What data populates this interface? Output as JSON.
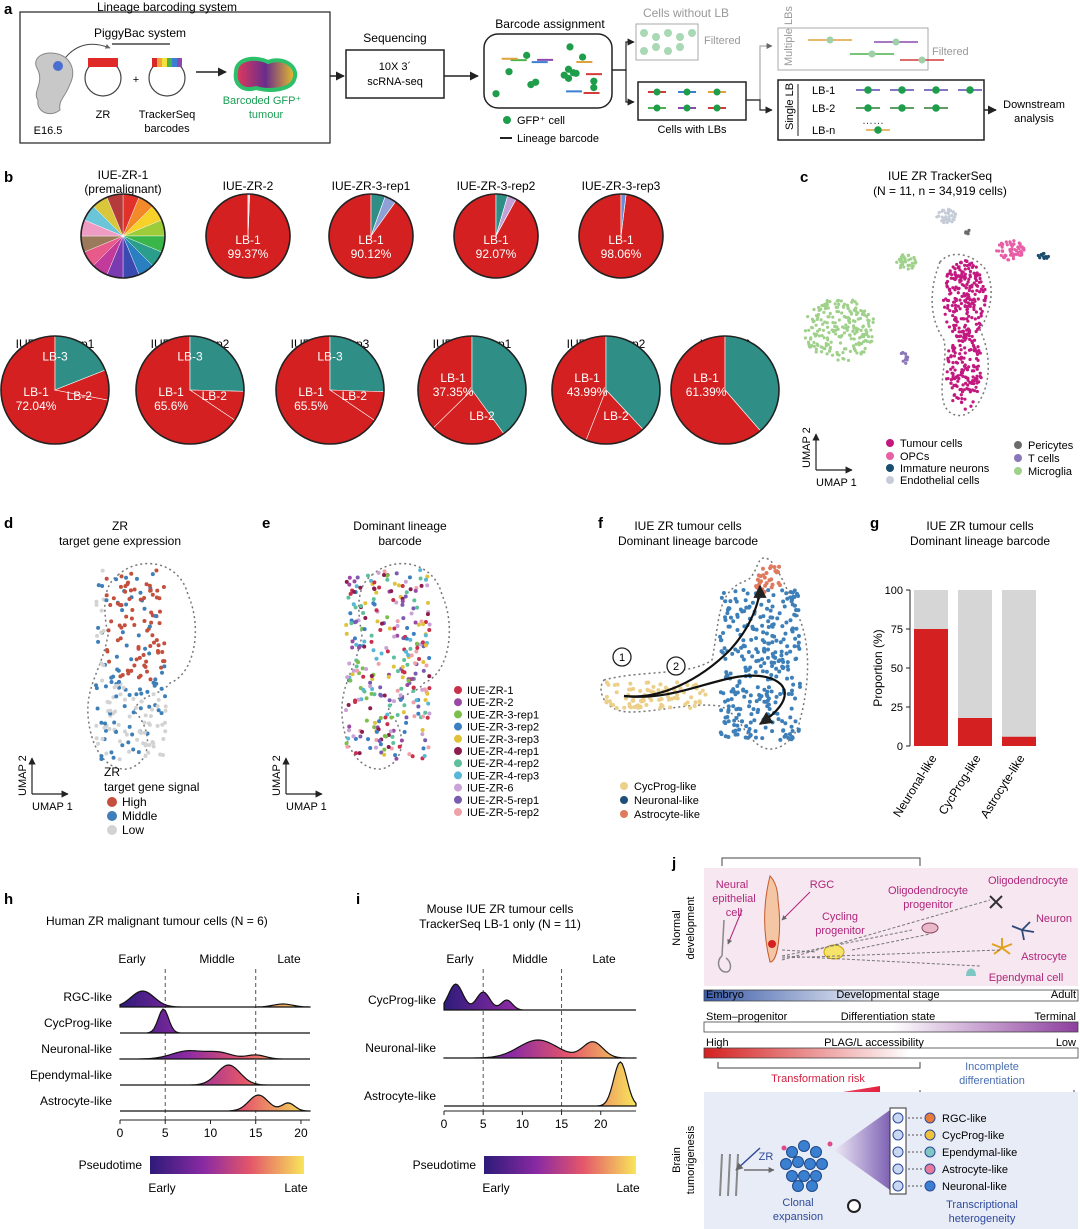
{
  "panel_letters": [
    "a",
    "b",
    "c",
    "d",
    "e",
    "f",
    "g",
    "h",
    "i",
    "j"
  ],
  "panel_a": {
    "title": "Lineage barcoding system",
    "piggybac": "PiggyBac system",
    "e165": "E16.5",
    "zr": "ZR",
    "tracker1": "TrackerSeq",
    "tracker2": "barcodes",
    "plus": "+",
    "tumour1": "Barcoded GFP⁺",
    "tumour2": "tumour",
    "seq_title": "Sequencing",
    "seq_box1": "10X 3´",
    "seq_box2": "scRNA-seq",
    "assign_title": "Barcode assignment",
    "gfp_cell": "GFP⁺ cell",
    "lineage_barcode": "Lineage barcode",
    "cells_without": "Cells without LB",
    "filtered1": "Filtered",
    "multiple_lbs": "Multiple LBs",
    "filtered2": "Filtered",
    "cells_with": "Cells with LBs",
    "single_lb": "Single LB",
    "lb1": "LB-1",
    "lb2": "LB-2",
    "lbn": "LB-n",
    "downstream1": "Downstream",
    "downstream2": "analysis"
  },
  "panel_c": {
    "title": "IUE ZR TrackerSeq",
    "subtitle": "(N = 11, n = 34,919 cells)",
    "axis_x": "UMAP 1",
    "axis_y": "UMAP 2",
    "legend": [
      {
        "label": "Tumour cells",
        "color": "#c2187f"
      },
      {
        "label": "OPCs",
        "color": "#e75fa6"
      },
      {
        "label": "Immature neurons",
        "color": "#1a4d6e"
      },
      {
        "label": "Endothelial cells",
        "color": "#c5ccd8"
      },
      {
        "label": "Pericytes",
        "color": "#6b6b6b"
      },
      {
        "label": "T cells",
        "color": "#8a76b8"
      },
      {
        "label": "Microglia",
        "color": "#9fd18b"
      }
    ]
  },
  "panel_d": {
    "title1": "ZR",
    "title2": "target gene expression",
    "axis_x": "UMAP 1",
    "axis_y": "UMAP 2",
    "legend_title1": "ZR",
    "legend_title2": "target gene signal",
    "legend": [
      {
        "label": "High",
        "color": "#c44f3c"
      },
      {
        "label": "Middle",
        "color": "#3d7fb8"
      },
      {
        "label": "Low",
        "color": "#d3d3d3"
      }
    ]
  },
  "panel_e": {
    "title1": "Dominant lineage",
    "title2": "barcode",
    "axis_x": "UMAP 1",
    "axis_y": "UMAP 2",
    "legend": [
      {
        "label": "IUE-ZR-1",
        "color": "#c9304a"
      },
      {
        "label": "IUE-ZR-2",
        "color": "#9b4aa4"
      },
      {
        "label": "IUE-ZR-3-rep1",
        "color": "#7cbf4a"
      },
      {
        "label": "IUE-ZR-3-rep2",
        "color": "#3a7fc1"
      },
      {
        "label": "IUE-ZR-3-rep3",
        "color": "#e0c23a"
      },
      {
        "label": "IUE-ZR-4-rep1",
        "color": "#8c1d4e"
      },
      {
        "label": "IUE-ZR-4-rep2",
        "color": "#5ebf9c"
      },
      {
        "label": "IUE-ZR-4-rep3",
        "color": "#56b7d6"
      },
      {
        "label": "IUE-ZR-6",
        "color": "#c9a2d6"
      },
      {
        "label": "IUE-ZR-5-rep1",
        "color": "#7a5bb0"
      },
      {
        "label": "IUE-ZR-5-rep2",
        "color": "#f0a0a8"
      }
    ]
  },
  "panel_f": {
    "title1": "IUE ZR tumour cells",
    "title2": "Dominant lineage barcode",
    "marker1": "1",
    "marker2": "2",
    "legend": [
      {
        "label": "CycProg-like",
        "color": "#ecd08a"
      },
      {
        "label": "Neuronal-like",
        "color": "#1f4e79"
      },
      {
        "label": "Astrocyte-like",
        "color": "#e07a5f"
      }
    ]
  },
  "panel_h": {
    "title": "Human ZR malignant tumour cells (N = 6)",
    "stages": [
      "Early",
      "Middle",
      "Late"
    ],
    "rows": [
      "RGC-like",
      "CycProg-like",
      "Neuronal-like",
      "Ependymal-like",
      "Astrocyte-like"
    ],
    "ticks": [
      "0",
      "5",
      "10",
      "15",
      "20"
    ],
    "colorbar_title": "Pseudotime",
    "cb_low": "Early",
    "cb_high": "Late"
  },
  "panel_i": {
    "title1": "Mouse IUE ZR tumour cells",
    "title2": "TrackerSeq LB-1 only (N = 11)",
    "stages": [
      "Early",
      "Middle",
      "Late"
    ],
    "rows": [
      "CycProg-like",
      "Neuronal-like",
      "Astrocyte-like"
    ],
    "ticks": [
      "0",
      "5",
      "10",
      "15",
      "20"
    ],
    "colorbar_title": "Pseudotime",
    "cb_low": "Early",
    "cb_high": "Late"
  },
  "panel_j": {
    "normal_dev1": "Normal",
    "normal_dev2": "development",
    "neural1": "Neural",
    "neural2": "epithelial",
    "neural3": "cell",
    "rgc": "RGC",
    "cycling1": "Cycling",
    "cycling2": "progenitor",
    "opc1": "Oligodendrocyte",
    "opc2": "progenitor",
    "oligo": "Oligodendrocyte",
    "neuron": "Neuron",
    "astro": "Astrocyte",
    "epend": "Ependymal cell",
    "bar1_left": "Embryo",
    "bar1_mid": "Developmental stage",
    "bar1_right": "Adult",
    "bar2_left": "Stem–progenitor",
    "bar2_mid": "Differentiation state",
    "bar2_right": "Terminal",
    "bar3_left": "High",
    "bar3_mid": "PLAG/L accessibility",
    "bar3_right": "Low",
    "transformation": "Transformation risk",
    "incomplete1": "Incomplete",
    "incomplete2": "differentiation",
    "brain1": "Brain",
    "brain2": "tumorigenesis",
    "zr": "ZR",
    "clonal1": "Clonal",
    "clonal2": "expansion",
    "out": [
      "RGC-like",
      "CycProg-like",
      "Ependymal-like",
      "Astrocyte-like",
      "Neuronal-like"
    ],
    "hetero1": "Transcriptional",
    "hetero2": "heterogeneity"
  },
  "chart_data": [
    {
      "type": "pie",
      "panel": "b",
      "pies": [
        {
          "title": "IUE-ZR-1",
          "subtitle": "(premalignant)",
          "slices": [],
          "labels": []
        },
        {
          "title": "IUE-ZR-2",
          "slices": [
            99.37,
            0.63
          ],
          "labels": [
            {
              "name": "LB-1",
              "pct": "99.37%"
            }
          ]
        },
        {
          "title": "IUE-ZR-3-rep1",
          "slices": [
            90.12,
            5.5,
            4.38
          ],
          "labels": [
            {
              "name": "LB-1",
              "pct": "90.12%"
            }
          ]
        },
        {
          "title": "IUE-ZR-3-rep2",
          "slices": [
            92.07,
            4.5,
            3.43
          ],
          "labels": [
            {
              "name": "LB-1",
              "pct": "92.07%"
            }
          ]
        },
        {
          "title": "IUE-ZR-3-rep3",
          "slices": [
            98.06,
            1.94
          ],
          "labels": [
            {
              "name": "LB-1",
              "pct": "98.06%"
            }
          ]
        },
        {
          "title": "IUE-ZR-4-rep1",
          "slices": [
            72.04,
            19,
            9
          ],
          "labels": [
            {
              "name": "LB-1",
              "pct": "72.04%"
            },
            {
              "name": "LB-2"
            },
            {
              "name": "LB-3"
            }
          ]
        },
        {
          "title": "IUE-ZR-4-rep2",
          "slices": [
            65.6,
            25.4,
            9
          ],
          "labels": [
            {
              "name": "LB-1",
              "pct": "65.6%"
            },
            {
              "name": "LB-2"
            },
            {
              "name": "LB-3"
            }
          ]
        },
        {
          "title": "IUE-ZR-4-rep3",
          "slices": [
            65.5,
            25.5,
            9
          ],
          "labels": [
            {
              "name": "LB-1",
              "pct": "65.5%"
            },
            {
              "name": "LB-2"
            },
            {
              "name": "LB-3"
            }
          ]
        },
        {
          "title": "IUE-ZR-5-rep1",
          "slices": [
            37.35,
            40,
            22.65
          ],
          "labels": [
            {
              "name": "LB-1",
              "pct": "37.35%"
            },
            {
              "name": "LB-2"
            }
          ]
        },
        {
          "title": "IUE-ZR-5-rep2",
          "slices": [
            43.99,
            38,
            18.01
          ],
          "labels": [
            {
              "name": "LB-1",
              "pct": "43.99%"
            },
            {
              "name": "LB-2"
            }
          ]
        },
        {
          "title": "IUE-ZR-6",
          "slices": [
            61.39,
            38.61
          ],
          "labels": [
            {
              "name": "LB-1",
              "pct": "61.39%"
            }
          ]
        }
      ]
    },
    {
      "type": "bar",
      "panel": "g",
      "title": "IUE ZR tumour cells",
      "subtitle": "Dominant lineage barcode",
      "categories": [
        "Neuronal-like",
        "CycProg-like",
        "Astrocyte-like"
      ],
      "ylabel": "Proportion (%)",
      "yticks": [
        0,
        25,
        50,
        75,
        100
      ],
      "ylim": [
        0,
        100
      ],
      "series": [
        {
          "values": [
            75,
            18,
            6
          ],
          "color": "#d42020"
        },
        {
          "values": [
            25,
            82,
            94
          ],
          "color": "#d6d6d6"
        }
      ]
    }
  ]
}
